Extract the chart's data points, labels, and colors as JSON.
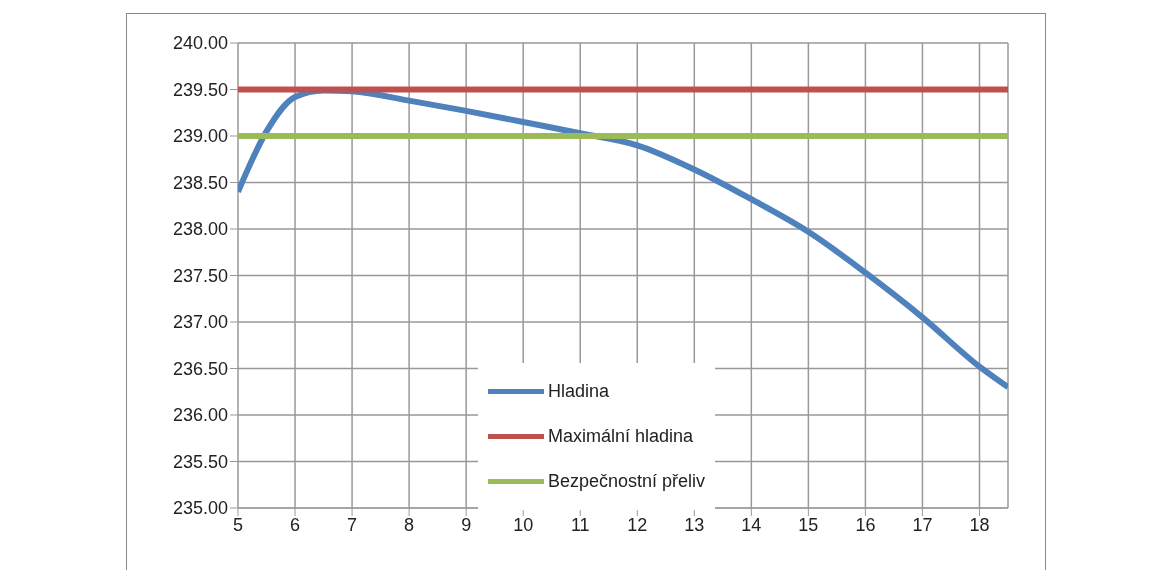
{
  "chart_data": {
    "type": "line",
    "xlim": [
      5,
      18.5
    ],
    "xticks": [
      5,
      6,
      7,
      8,
      9,
      10,
      11,
      12,
      13,
      14,
      15,
      16,
      17,
      18
    ],
    "ylim": [
      235,
      240
    ],
    "yticks": [
      {
        "value": 235,
        "label": "235.00"
      },
      {
        "value": 235.5,
        "label": "235.50"
      },
      {
        "value": 236,
        "label": "236.00"
      },
      {
        "value": 236.5,
        "label": "236.50"
      },
      {
        "value": 237,
        "label": "237.00"
      },
      {
        "value": 237.5,
        "label": "237.50"
      },
      {
        "value": 238,
        "label": "238.00"
      },
      {
        "value": 238.5,
        "label": "238.50"
      },
      {
        "value": 239,
        "label": "239.00"
      },
      {
        "value": 239.5,
        "label": "239.50"
      },
      {
        "value": 240,
        "label": "240.00"
      }
    ],
    "grid": true,
    "legend": "bottom",
    "marker": "none",
    "line_style": "solid",
    "series": [
      {
        "name": "Hladina",
        "color": "#4f81bd",
        "x": [
          5,
          5.5,
          6,
          6.5,
          7,
          8,
          9,
          10,
          11,
          12,
          13,
          14,
          15,
          16,
          17,
          18,
          18.5
        ],
        "values": [
          238.4,
          239.05,
          239.42,
          239.49,
          239.48,
          239.38,
          239.27,
          239.15,
          239.03,
          238.9,
          238.64,
          238.32,
          237.97,
          237.53,
          237.05,
          236.52,
          236.3
        ]
      },
      {
        "name": "Maximální hladina",
        "color": "#c0504d",
        "x": [
          5,
          18.5
        ],
        "values": [
          239.5,
          239.5
        ]
      },
      {
        "name": "Bezpečnostní přeliv",
        "color": "#9bbb59",
        "x": [
          5,
          18.5
        ],
        "values": [
          239,
          239
        ]
      }
    ]
  }
}
